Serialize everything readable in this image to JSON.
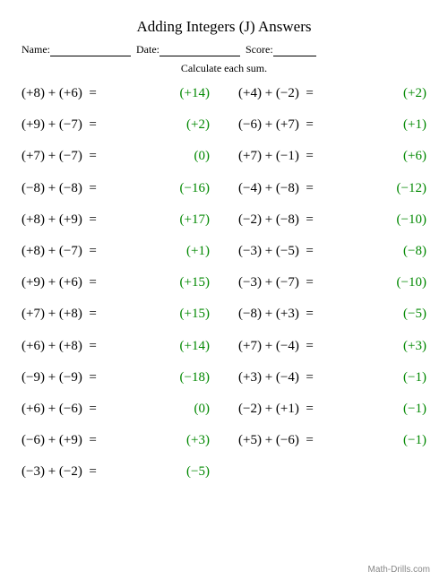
{
  "title": "Adding Integers (J) Answers",
  "header": {
    "name_label": "Name:",
    "date_label": "Date:",
    "score_label": "Score:"
  },
  "instruction": "Calculate each sum.",
  "answer_color": "#008800",
  "font_family": "Times New Roman, serif",
  "left": [
    {
      "a": "(+8)",
      "b": "(+6)",
      "ans": "(+14)"
    },
    {
      "a": "(+9)",
      "b": "(−7)",
      "ans": "(+2)"
    },
    {
      "a": "(+7)",
      "b": "(−7)",
      "ans": "(0)"
    },
    {
      "a": "(−8)",
      "b": "(−8)",
      "ans": "(−16)"
    },
    {
      "a": "(+8)",
      "b": "(+9)",
      "ans": "(+17)"
    },
    {
      "a": "(+8)",
      "b": "(−7)",
      "ans": "(+1)"
    },
    {
      "a": "(+9)",
      "b": "(+6)",
      "ans": "(+15)"
    },
    {
      "a": "(+7)",
      "b": "(+8)",
      "ans": "(+15)"
    },
    {
      "a": "(+6)",
      "b": "(+8)",
      "ans": "(+14)"
    },
    {
      "a": "(−9)",
      "b": "(−9)",
      "ans": "(−18)"
    },
    {
      "a": "(+6)",
      "b": "(−6)",
      "ans": "(0)"
    },
    {
      "a": "(−6)",
      "b": "(+9)",
      "ans": "(+3)"
    },
    {
      "a": "(−3)",
      "b": "(−2)",
      "ans": "(−5)"
    }
  ],
  "right": [
    {
      "a": "(+4)",
      "b": "(−2)",
      "ans": "(+2)"
    },
    {
      "a": "(−6)",
      "b": "(+7)",
      "ans": "(+1)"
    },
    {
      "a": "(+7)",
      "b": "(−1)",
      "ans": "(+6)"
    },
    {
      "a": "(−4)",
      "b": "(−8)",
      "ans": "(−12)"
    },
    {
      "a": "(−2)",
      "b": "(−8)",
      "ans": "(−10)"
    },
    {
      "a": "(−3)",
      "b": "(−5)",
      "ans": "(−8)"
    },
    {
      "a": "(−3)",
      "b": "(−7)",
      "ans": "(−10)"
    },
    {
      "a": "(−8)",
      "b": "(+3)",
      "ans": "(−5)"
    },
    {
      "a": "(+7)",
      "b": "(−4)",
      "ans": "(+3)"
    },
    {
      "a": "(+3)",
      "b": "(−4)",
      "ans": "(−1)"
    },
    {
      "a": "(−2)",
      "b": "(+1)",
      "ans": "(−1)"
    },
    {
      "a": "(+5)",
      "b": "(−6)",
      "ans": "(−1)"
    }
  ],
  "footer": "Math-Drills.com"
}
